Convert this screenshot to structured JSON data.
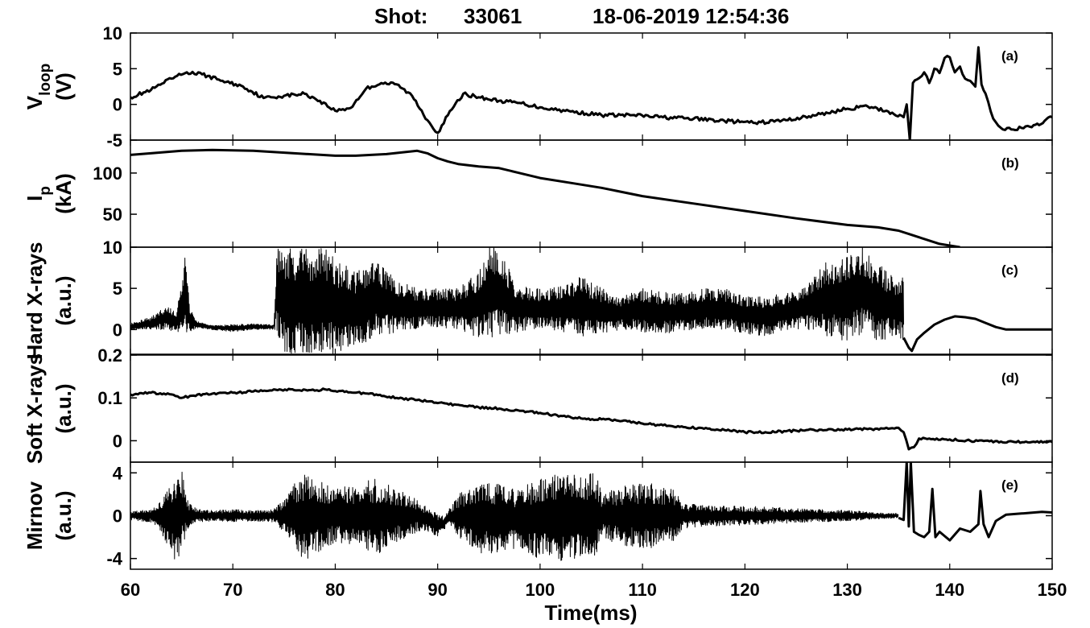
{
  "title": {
    "shot_label": "Shot:",
    "shot_number": "33061",
    "datetime": "18-06-2019 12:54:36"
  },
  "chart_data": {
    "type": "line",
    "xlabel": "Time(ms)",
    "xlim": [
      60,
      150
    ],
    "xticks": [
      60,
      70,
      80,
      90,
      100,
      110,
      120,
      130,
      140,
      150
    ],
    "panels": [
      {
        "id": "a",
        "label": "(a)",
        "ylabel": "V",
        "ylabel_sub": "loop",
        "ylabel_unit": "(V)",
        "ylim": [
          -5,
          10
        ],
        "yticks": [
          -5,
          0,
          5,
          10
        ],
        "series": [
          {
            "x": [
              60,
              62,
              64,
              65.5,
              67,
              69,
              71,
              73,
              75,
              77,
              78.5,
              80,
              81.5,
              83,
              84.5,
              86,
              87.5,
              89,
              90,
              91,
              92.5,
              94,
              96,
              98,
              100,
              103,
              106,
              109,
              112,
              115,
              118,
              121,
              124,
              127,
              130,
              132,
              134,
              135.5,
              135.8,
              136.1,
              136.4,
              136.8,
              137.5,
              138,
              138.5,
              139,
              139.5,
              140,
              140.5,
              141,
              141.5,
              142,
              142.5,
              142.8,
              143.1,
              143.5,
              144,
              144.5,
              145,
              146,
              147,
              148,
              150
            ],
            "y": [
              1,
              2,
              3.6,
              4.5,
              4.2,
              3.3,
              2.5,
              0.9,
              1.2,
              1.5,
              0.5,
              -0.9,
              -0.5,
              2.2,
              3,
              2.8,
              1.2,
              -2.2,
              -4,
              -1.5,
              1.5,
              1,
              0.5,
              0.2,
              -0.4,
              -1,
              -1.5,
              -1.5,
              -1.8,
              -2,
              -2.3,
              -2.6,
              -2.2,
              -1.5,
              -0.6,
              -0.3,
              -1,
              -1.8,
              0,
              -5,
              3,
              3.5,
              4.5,
              3,
              5,
              4.4,
              6.5,
              6.6,
              4.5,
              5.3,
              3.6,
              3.3,
              2.5,
              8,
              2.8,
              1.5,
              -1,
              -2.5,
              -3.3,
              -3.5,
              -3.3,
              -3.2,
              -1.8
            ]
          }
        ]
      },
      {
        "id": "b",
        "label": "(b)",
        "ylabel": "I",
        "ylabel_sub": "p",
        "ylabel_unit": "(kA)",
        "ylim": [
          10,
          140
        ],
        "yticks": [
          50,
          100
        ],
        "series": [
          {
            "x": [
              60,
              62,
              65,
              68,
              72,
              76,
              80,
              82,
              85,
              88,
              89,
              90,
              91,
              92,
              94,
              96,
              98,
              100,
              103,
              106,
              110,
              115,
              120,
              125,
              130,
              133,
              135,
              136,
              137,
              138,
              139,
              140,
              141
            ],
            "y": [
              122,
              124,
              127,
              128,
              127,
              124,
              121,
              121,
              123,
              127,
              124,
              118,
              114,
              111,
              108,
              106,
              100,
              94,
              88,
              82,
              72,
              63,
              54,
              45,
              37,
              34,
              30,
              26,
              22,
              18,
              14,
              12,
              10
            ]
          }
        ]
      },
      {
        "id": "c",
        "label": "(c)",
        "ylabel": "Hard X-rays",
        "ylabel_unit": "(a.u.)",
        "ylim": [
          -3,
          10
        ],
        "yticks": [
          0,
          5,
          10
        ],
        "envelope": {
          "x": [
            60,
            62,
            63.5,
            64.5,
            65,
            65.3,
            65.8,
            66.5,
            68,
            70,
            72,
            74,
            74.3,
            75,
            77,
            79,
            80,
            82,
            84,
            86,
            88,
            90,
            92,
            94,
            95,
            96,
            97.5,
            99,
            101,
            103,
            104,
            106,
            108,
            110,
            112,
            114,
            116,
            118,
            120,
            122,
            124,
            126,
            128,
            130,
            131.5,
            133,
            134.5,
            135.5
          ],
          "upper": [
            0.8,
            1.5,
            3,
            2,
            6,
            9,
            3,
            1,
            0.5,
            0.6,
            0.7,
            0.6,
            10,
            10,
            10,
            10,
            9,
            7,
            8.5,
            6,
            5,
            5,
            5,
            7,
            10,
            10,
            6,
            5,
            5,
            6,
            6.5,
            5,
            4,
            5,
            4.5,
            4.5,
            5,
            5,
            4,
            4,
            4.5,
            5.5,
            8.5,
            9,
            10,
            8,
            6.5,
            7
          ],
          "lower": [
            0,
            0,
            0,
            -0.3,
            -0.3,
            -0.3,
            -0.3,
            0.2,
            0,
            -0.3,
            0,
            0,
            -0.3,
            -3,
            -3,
            -3,
            -3,
            -2,
            -1,
            -0.3,
            0,
            0.3,
            0,
            -1,
            -1,
            -0.8,
            -0.5,
            0,
            0,
            -0.5,
            -1,
            -0.5,
            0,
            -0.3,
            -0.5,
            -0.3,
            0,
            0,
            -0.5,
            -0.8,
            0,
            0,
            -1,
            -1.5,
            -0.5,
            -1.5,
            -0.8,
            -1.8
          ]
        },
        "series": [
          {
            "x": [
              135.5,
              136,
              136.3,
              136.8,
              137.5,
              138.5,
              139.5,
              140.5,
              141.5,
              142.5,
              143.5,
              144.5,
              145.5,
              147,
              149,
              150
            ],
            "y": [
              -1,
              -2.2,
              -2.6,
              -1.2,
              -0.4,
              0.6,
              1.2,
              1.6,
              1.5,
              1.3,
              0.8,
              0.3,
              0,
              0,
              0,
              0
            ]
          }
        ]
      },
      {
        "id": "d",
        "label": "(d)",
        "ylabel": "Soft X-rays",
        "ylabel_unit": "(a.u.)",
        "ylim": [
          -0.05,
          0.2
        ],
        "yticks": [
          0,
          0.1,
          0.2
        ],
        "series": [
          {
            "x": [
              60,
              62,
              64,
              65,
              66,
              68,
              70,
              72,
              74,
              76,
              78,
              79,
              80,
              82,
              84,
              86,
              88,
              90,
              92,
              94,
              96,
              98,
              100,
              102,
              104,
              106,
              108,
              110,
              112,
              114,
              116,
              118,
              120,
              122,
              124,
              126,
              128,
              130,
              132,
              134,
              135,
              135.5,
              136,
              136.5,
              137,
              138,
              140,
              142,
              145,
              148,
              150
            ],
            "y": [
              0.108,
              0.112,
              0.108,
              0.1,
              0.105,
              0.11,
              0.112,
              0.115,
              0.12,
              0.118,
              0.117,
              0.12,
              0.116,
              0.112,
              0.108,
              0.1,
              0.095,
              0.088,
              0.084,
              0.078,
              0.075,
              0.07,
              0.065,
              0.058,
              0.052,
              0.05,
              0.046,
              0.04,
              0.036,
              0.032,
              0.028,
              0.025,
              0.02,
              0.02,
              0.022,
              0.025,
              0.025,
              0.026,
              0.027,
              0.028,
              0.03,
              0.02,
              -0.02,
              -0.015,
              0.005,
              0.005,
              0.003,
              0,
              -0.002,
              -0.003,
              -0.003
            ]
          }
        ]
      },
      {
        "id": "e",
        "label": "(e)",
        "ylabel": "Mirnov",
        "ylabel_unit": "(a.u.)",
        "ylim": [
          -5,
          5
        ],
        "yticks": [
          -4,
          0,
          4
        ],
        "envelope": {
          "x": [
            60,
            61,
            62,
            63,
            63.8,
            64.5,
            65,
            65.5,
            66.5,
            68,
            70,
            72,
            74,
            75,
            76,
            77,
            79,
            80,
            82,
            84,
            86,
            88,
            89,
            90,
            90.5,
            91,
            92,
            94,
            96,
            98,
            100,
            102,
            104,
            105.5,
            106,
            107,
            109,
            111,
            113,
            114,
            116,
            120,
            125,
            130,
            133,
            135
          ],
          "upper": [
            0.4,
            0.5,
            0.6,
            1.6,
            2.8,
            3.5,
            4.5,
            1.5,
            0.6,
            0.5,
            0.6,
            0.5,
            0.6,
            1.5,
            3,
            3.8,
            3,
            2.5,
            3,
            3.5,
            2.5,
            1.5,
            0.8,
            0.2,
            0,
            0.5,
            2,
            3,
            3,
            2.5,
            3.8,
            3.9,
            3.8,
            4,
            2,
            2.5,
            3,
            3,
            2.5,
            1.2,
            1,
            0.9,
            0.7,
            0.5,
            0.3,
            0.2
          ],
          "lower": [
            -0.4,
            -0.5,
            -0.6,
            -1.8,
            -3,
            -4.5,
            -3.5,
            -1.5,
            -0.6,
            -0.5,
            -0.6,
            -0.5,
            -0.6,
            -1.5,
            -3,
            -4.2,
            -3,
            -2.5,
            -3,
            -3.7,
            -2.5,
            -1.5,
            -1.5,
            -2,
            -1.5,
            -0.8,
            -2,
            -3.5,
            -3.5,
            -3,
            -4.1,
            -4.2,
            -4,
            -3.9,
            -2,
            -2.5,
            -3,
            -3,
            -2.5,
            -1.2,
            -1,
            -0.9,
            -0.7,
            -0.5,
            -0.3,
            -0.2
          ]
        },
        "series": [
          {
            "x": [
              135,
              135.5,
              135.8,
              136,
              136.2,
              136.5,
              137,
              137.5,
              138,
              138.3,
              138.6,
              139,
              140,
              141,
              142,
              142.8,
              143,
              143.3,
              143.8,
              144.5,
              145.5,
              147,
              149,
              150
            ],
            "y": [
              -0.2,
              -0.4,
              5,
              -1,
              5,
              -1.5,
              -1.8,
              -2,
              -1.5,
              2.5,
              -2,
              -1.5,
              -2.3,
              -1.2,
              -1.5,
              -0.8,
              2.3,
              -0.8,
              -2,
              -0.5,
              0.1,
              0.2,
              0.35,
              0.3
            ]
          }
        ]
      }
    ]
  }
}
